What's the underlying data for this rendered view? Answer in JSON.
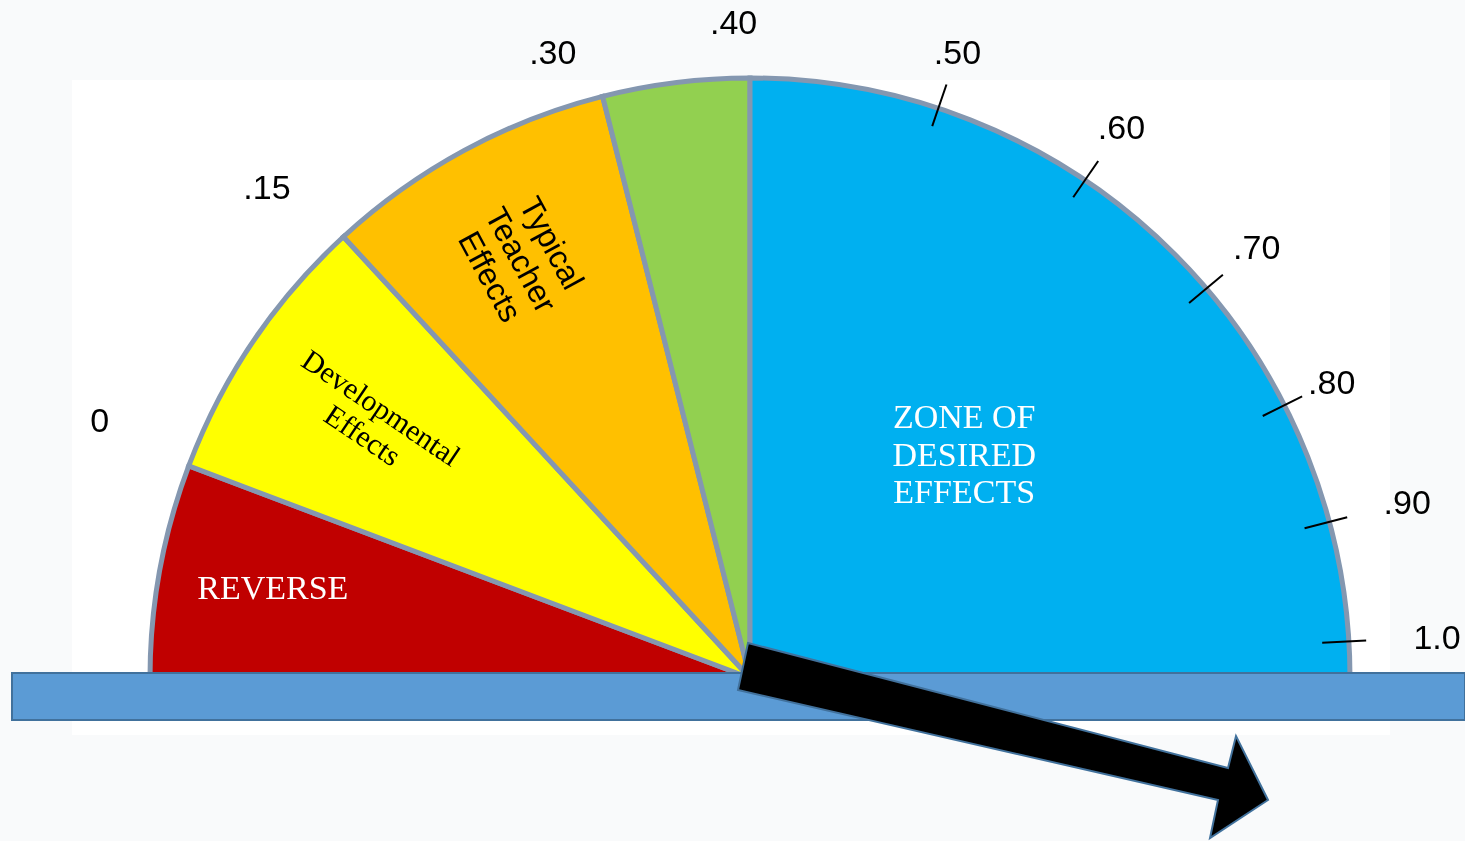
{
  "chart_data": {
    "type": "pie",
    "categories": [
      "REVERSE",
      "Developmental Effects",
      "Typical Teacher Effects",
      null,
      "ZONE OF DESIRED EFFECTS"
    ],
    "values": [
      11.5,
      14.8,
      15.8,
      7.9,
      50
    ],
    "colors": [
      "#c00000",
      "#ffff00",
      "#ffc000",
      "#92d050",
      "#00b0f0"
    ],
    "needle": "ZONE OF DESIRED EFFECTS",
    "annotations": [
      "0",
      ".15",
      ".30",
      ".40",
      ".50",
      ".60",
      ".70",
      ".80",
      ".90",
      "1.0"
    ]
  }
}
